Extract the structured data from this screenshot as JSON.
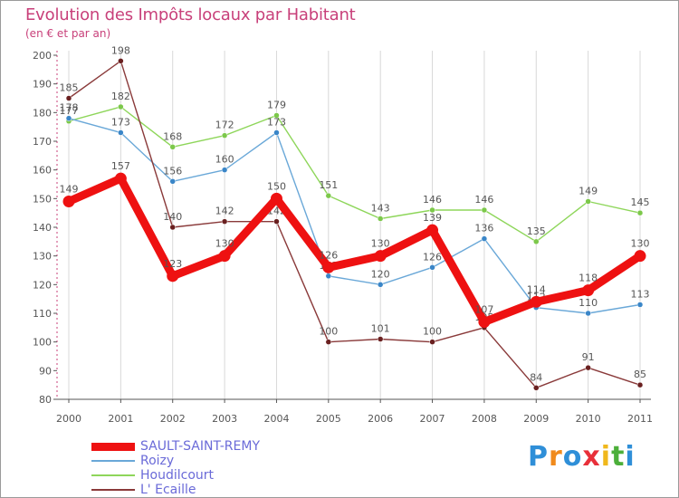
{
  "header": {
    "title": "Evolution des Impôts locaux par Habitant",
    "subtitle": "(en € et par an)"
  },
  "brand": {
    "logo_text": "Proxiti",
    "letters": [
      "P",
      "r",
      "o",
      "x",
      "i",
      "t",
      "i"
    ],
    "letter_colors": [
      "#2f8fd8",
      "#f08a1c",
      "#2f8fd8",
      "#e8303a",
      "#f0b81c",
      "#4caf3a",
      "#2f8fd8"
    ]
  },
  "colors": {
    "title": "#c8407a",
    "axis": "#c8407a",
    "grid": "#d8d8d8",
    "legend_text": "#6a6ad8"
  },
  "chart_data": {
    "type": "line",
    "title": "Evolution des Impôts locaux par Habitant",
    "subtitle": "(en € et par an)",
    "xlabel": "",
    "ylabel": "",
    "x": [
      "2000",
      "2001",
      "2002",
      "2003",
      "2004",
      "2005",
      "2006",
      "2007",
      "2008",
      "2009",
      "2010",
      "2011"
    ],
    "ylim": [
      80,
      200
    ],
    "yticks": [
      80,
      90,
      100,
      110,
      120,
      130,
      140,
      150,
      160,
      170,
      180,
      190,
      200
    ],
    "grid": "vertical",
    "legend_position": "bottom-left",
    "series": [
      {
        "name": "Houdilcourt",
        "color": "#8ed65a",
        "marker": "#7cc84a",
        "width": "thin",
        "values": [
          177,
          182,
          168,
          172,
          179,
          151,
          143,
          146,
          146,
          135,
          149,
          145
        ],
        "labels": [
          "177",
          "182",
          "168",
          "172",
          "179",
          "151",
          "143",
          "146",
          "146",
          "135",
          "149",
          "145"
        ]
      },
      {
        "name": "Roizy",
        "color": "#6aa8d8",
        "marker": "#3a86c8",
        "width": "thin",
        "values": [
          178,
          173,
          156,
          160,
          173,
          123,
          120,
          126,
          136,
          112,
          110,
          113
        ],
        "labels": [
          "178",
          "173",
          "156",
          "160",
          "173",
          "123",
          "120",
          "126",
          "136",
          "112",
          "110",
          "113"
        ]
      },
      {
        "name": "L' Ecaille",
        "color": "#8a3a3a",
        "marker": "#6a2020",
        "width": "thin",
        "values": [
          185,
          198,
          140,
          142,
          142,
          100,
          101,
          100,
          105,
          84,
          91,
          85
        ],
        "labels": [
          "185",
          "198",
          "140",
          "142",
          "142",
          "100",
          "101",
          "100",
          "105",
          "84",
          "91",
          "85"
        ]
      },
      {
        "name": "SAULT-SAINT-REMY",
        "color": "#ee1111",
        "marker": "#ee1111",
        "width": "thick",
        "values": [
          149,
          157,
          123,
          130,
          150,
          126,
          130,
          139,
          107,
          114,
          118,
          130
        ],
        "labels": [
          "149",
          "157",
          "123",
          "130",
          "150",
          "126",
          "130",
          "139",
          "107",
          "114",
          "118",
          "130"
        ]
      }
    ],
    "legend_order": [
      "SAULT-SAINT-REMY",
      "Roizy",
      "Houdilcourt",
      "L' Ecaille"
    ]
  }
}
